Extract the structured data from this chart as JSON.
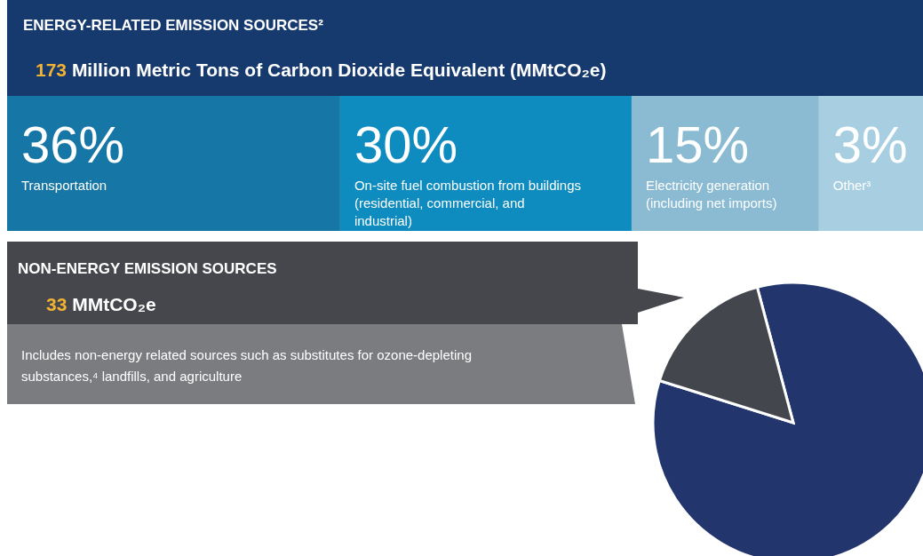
{
  "chart_data": [
    {
      "type": "other",
      "title": "ENERGY-RELATED EMISSION SOURCES²",
      "subtitle": "173 Million Metric Tons of Carbon Dioxide Equivalent (MMtCO₂e)",
      "categories": [
        "Transportation",
        "On-site fuel combustion from buildings (residential, commercial, and industrial)",
        "Electricity generation (including net imports)",
        "Other³"
      ],
      "values": [
        36,
        30,
        15,
        3
      ],
      "value_labels": [
        "36%",
        "30%",
        "15%",
        "3%"
      ],
      "colors": [
        "#1677a6",
        "#0e8bbf",
        "#8bbbd3",
        "#a8cfe1"
      ]
    },
    {
      "type": "other",
      "title": "NON-ENERGY EMISSION SOURCES",
      "subtitle": "33 MMtCO₂e",
      "annotations": [
        "Includes non-energy related sources such as substitutes for ozone-depleting substances,⁴ landfills, and agriculture"
      ]
    },
    {
      "type": "pie",
      "categories": [
        null,
        null
      ],
      "values": [
        84,
        16
      ],
      "colors": [
        "#22356c",
        "#43464c"
      ]
    }
  ]
}
